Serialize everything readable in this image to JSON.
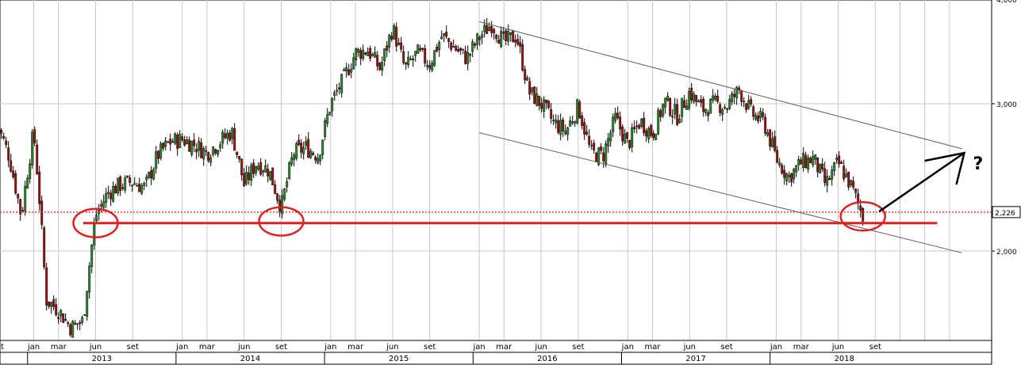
{
  "chart_data": {
    "type": "candlestick",
    "title": "",
    "xlabel": "",
    "ylabel": "",
    "y_scale": "log",
    "y_ticks": [
      {
        "value": 2.0,
        "label": "2,000"
      },
      {
        "value": 3.0,
        "label": "3,000"
      },
      {
        "value": 4.0,
        "label": "4,000"
      }
    ],
    "last_price": {
      "value": 2.226,
      "label": "2,226"
    },
    "x_ticks": [
      {
        "date": "2012-10",
        "label": "t"
      },
      {
        "date": "2013-01",
        "label": "jan"
      },
      {
        "date": "2013-03",
        "label": "mar"
      },
      {
        "date": "2013-06",
        "label": "jun"
      },
      {
        "date": "2013-09",
        "label": "set"
      },
      {
        "date": "2014-01",
        "label": "jan"
      },
      {
        "date": "2014-03",
        "label": "mar"
      },
      {
        "date": "2014-06",
        "label": "jun"
      },
      {
        "date": "2014-09",
        "label": "set"
      },
      {
        "date": "2015-01",
        "label": "jan"
      },
      {
        "date": "2015-03",
        "label": "mar"
      },
      {
        "date": "2015-06",
        "label": "jun"
      },
      {
        "date": "2015-09",
        "label": "set"
      },
      {
        "date": "2016-01",
        "label": "jan"
      },
      {
        "date": "2016-03",
        "label": "mar"
      },
      {
        "date": "2016-06",
        "label": "jun"
      },
      {
        "date": "2016-09",
        "label": "set"
      },
      {
        "date": "2017-01",
        "label": "jan"
      },
      {
        "date": "2017-03",
        "label": "mar"
      },
      {
        "date": "2017-06",
        "label": "jun"
      },
      {
        "date": "2017-09",
        "label": "set"
      },
      {
        "date": "2018-01",
        "label": "jan"
      },
      {
        "date": "2018-03",
        "label": "mar"
      },
      {
        "date": "2018-06",
        "label": "jun"
      },
      {
        "date": "2018-09",
        "label": "set"
      }
    ],
    "years": [
      "2013",
      "2014",
      "2015",
      "2016",
      "2017",
      "2018"
    ],
    "price_path": [
      [
        "2012-10",
        2.85
      ],
      [
        "2012-11",
        2.6
      ],
      [
        "2012-12",
        2.2
      ],
      [
        "2013-01",
        2.78
      ],
      [
        "2013-02",
        1.75
      ],
      [
        "2013-03",
        1.7
      ],
      [
        "2013-04",
        1.62
      ],
      [
        "2013-05",
        1.65
      ],
      [
        "2013-06",
        2.2
      ],
      [
        "2013-07",
        2.35
      ],
      [
        "2013-08",
        2.4
      ],
      [
        "2013-09",
        2.42
      ],
      [
        "2013-10",
        2.38
      ],
      [
        "2013-11",
        2.6
      ],
      [
        "2013-12",
        2.7
      ],
      [
        "2014-01",
        2.72
      ],
      [
        "2014-02",
        2.68
      ],
      [
        "2014-03",
        2.62
      ],
      [
        "2014-04",
        2.7
      ],
      [
        "2014-05",
        2.78
      ],
      [
        "2014-06",
        2.4
      ],
      [
        "2014-07",
        2.55
      ],
      [
        "2014-08",
        2.5
      ],
      [
        "2014-09",
        2.25
      ],
      [
        "2014-10",
        2.62
      ],
      [
        "2014-11",
        2.66
      ],
      [
        "2014-12",
        2.6
      ],
      [
        "2015-01",
        3.0
      ],
      [
        "2015-02",
        3.2
      ],
      [
        "2015-03",
        3.45
      ],
      [
        "2015-04",
        3.48
      ],
      [
        "2015-05",
        3.3
      ],
      [
        "2015-06",
        3.7
      ],
      [
        "2015-07",
        3.3
      ],
      [
        "2015-08",
        3.45
      ],
      [
        "2015-09",
        3.35
      ],
      [
        "2015-10",
        3.62
      ],
      [
        "2015-11",
        3.5
      ],
      [
        "2015-12",
        3.4
      ],
      [
        "2016-01",
        3.6
      ],
      [
        "2016-02",
        3.74
      ],
      [
        "2016-03",
        3.55
      ],
      [
        "2016-04",
        3.62
      ],
      [
        "2016-05",
        3.1
      ],
      [
        "2016-06",
        3.0
      ],
      [
        "2016-07",
        2.85
      ],
      [
        "2016-08",
        2.78
      ],
      [
        "2016-09",
        2.98
      ],
      [
        "2016-10",
        2.62
      ],
      [
        "2016-11",
        2.6
      ],
      [
        "2016-12",
        2.88
      ],
      [
        "2017-01",
        2.68
      ],
      [
        "2017-02",
        2.86
      ],
      [
        "2017-03",
        2.76
      ],
      [
        "2017-04",
        3.02
      ],
      [
        "2017-05",
        2.9
      ],
      [
        "2017-06",
        3.1
      ],
      [
        "2017-07",
        2.95
      ],
      [
        "2017-08",
        3.0
      ],
      [
        "2017-09",
        2.98
      ],
      [
        "2017-10",
        3.12
      ],
      [
        "2017-11",
        2.92
      ],
      [
        "2017-12",
        2.85
      ],
      [
        "2018-01",
        2.58
      ],
      [
        "2018-02",
        2.45
      ],
      [
        "2018-03",
        2.55
      ],
      [
        "2018-04",
        2.58
      ],
      [
        "2018-05",
        2.4
      ],
      [
        "2018-06",
        2.55
      ],
      [
        "2018-07",
        2.4
      ],
      [
        "2018-08",
        2.2
      ]
    ],
    "annotations": {
      "support_level": {
        "value": 2.16,
        "from": "2013-05",
        "to": "2019-02"
      },
      "channel_upper": [
        [
          "2016-01",
          3.76
        ],
        [
          "2019-04",
          2.65
        ]
      ],
      "channel_lower": [
        [
          "2016-01",
          2.77
        ],
        [
          "2019-04",
          1.99
        ]
      ],
      "circles": [
        [
          "2013-06",
          2.16
        ],
        [
          "2014-09",
          2.17
        ],
        [
          "2018-08",
          2.2
        ]
      ],
      "arrow": {
        "from": [
          "2018-09",
          2.23
        ],
        "to": [
          "2019-04",
          2.62
        ]
      },
      "question_mark": "?"
    },
    "colors": {
      "up": "#2e8b2e",
      "down": "#a01010",
      "annotation": "#e02020",
      "grid": "#c8c8c8",
      "channel": "#606060"
    },
    "grid": true
  }
}
